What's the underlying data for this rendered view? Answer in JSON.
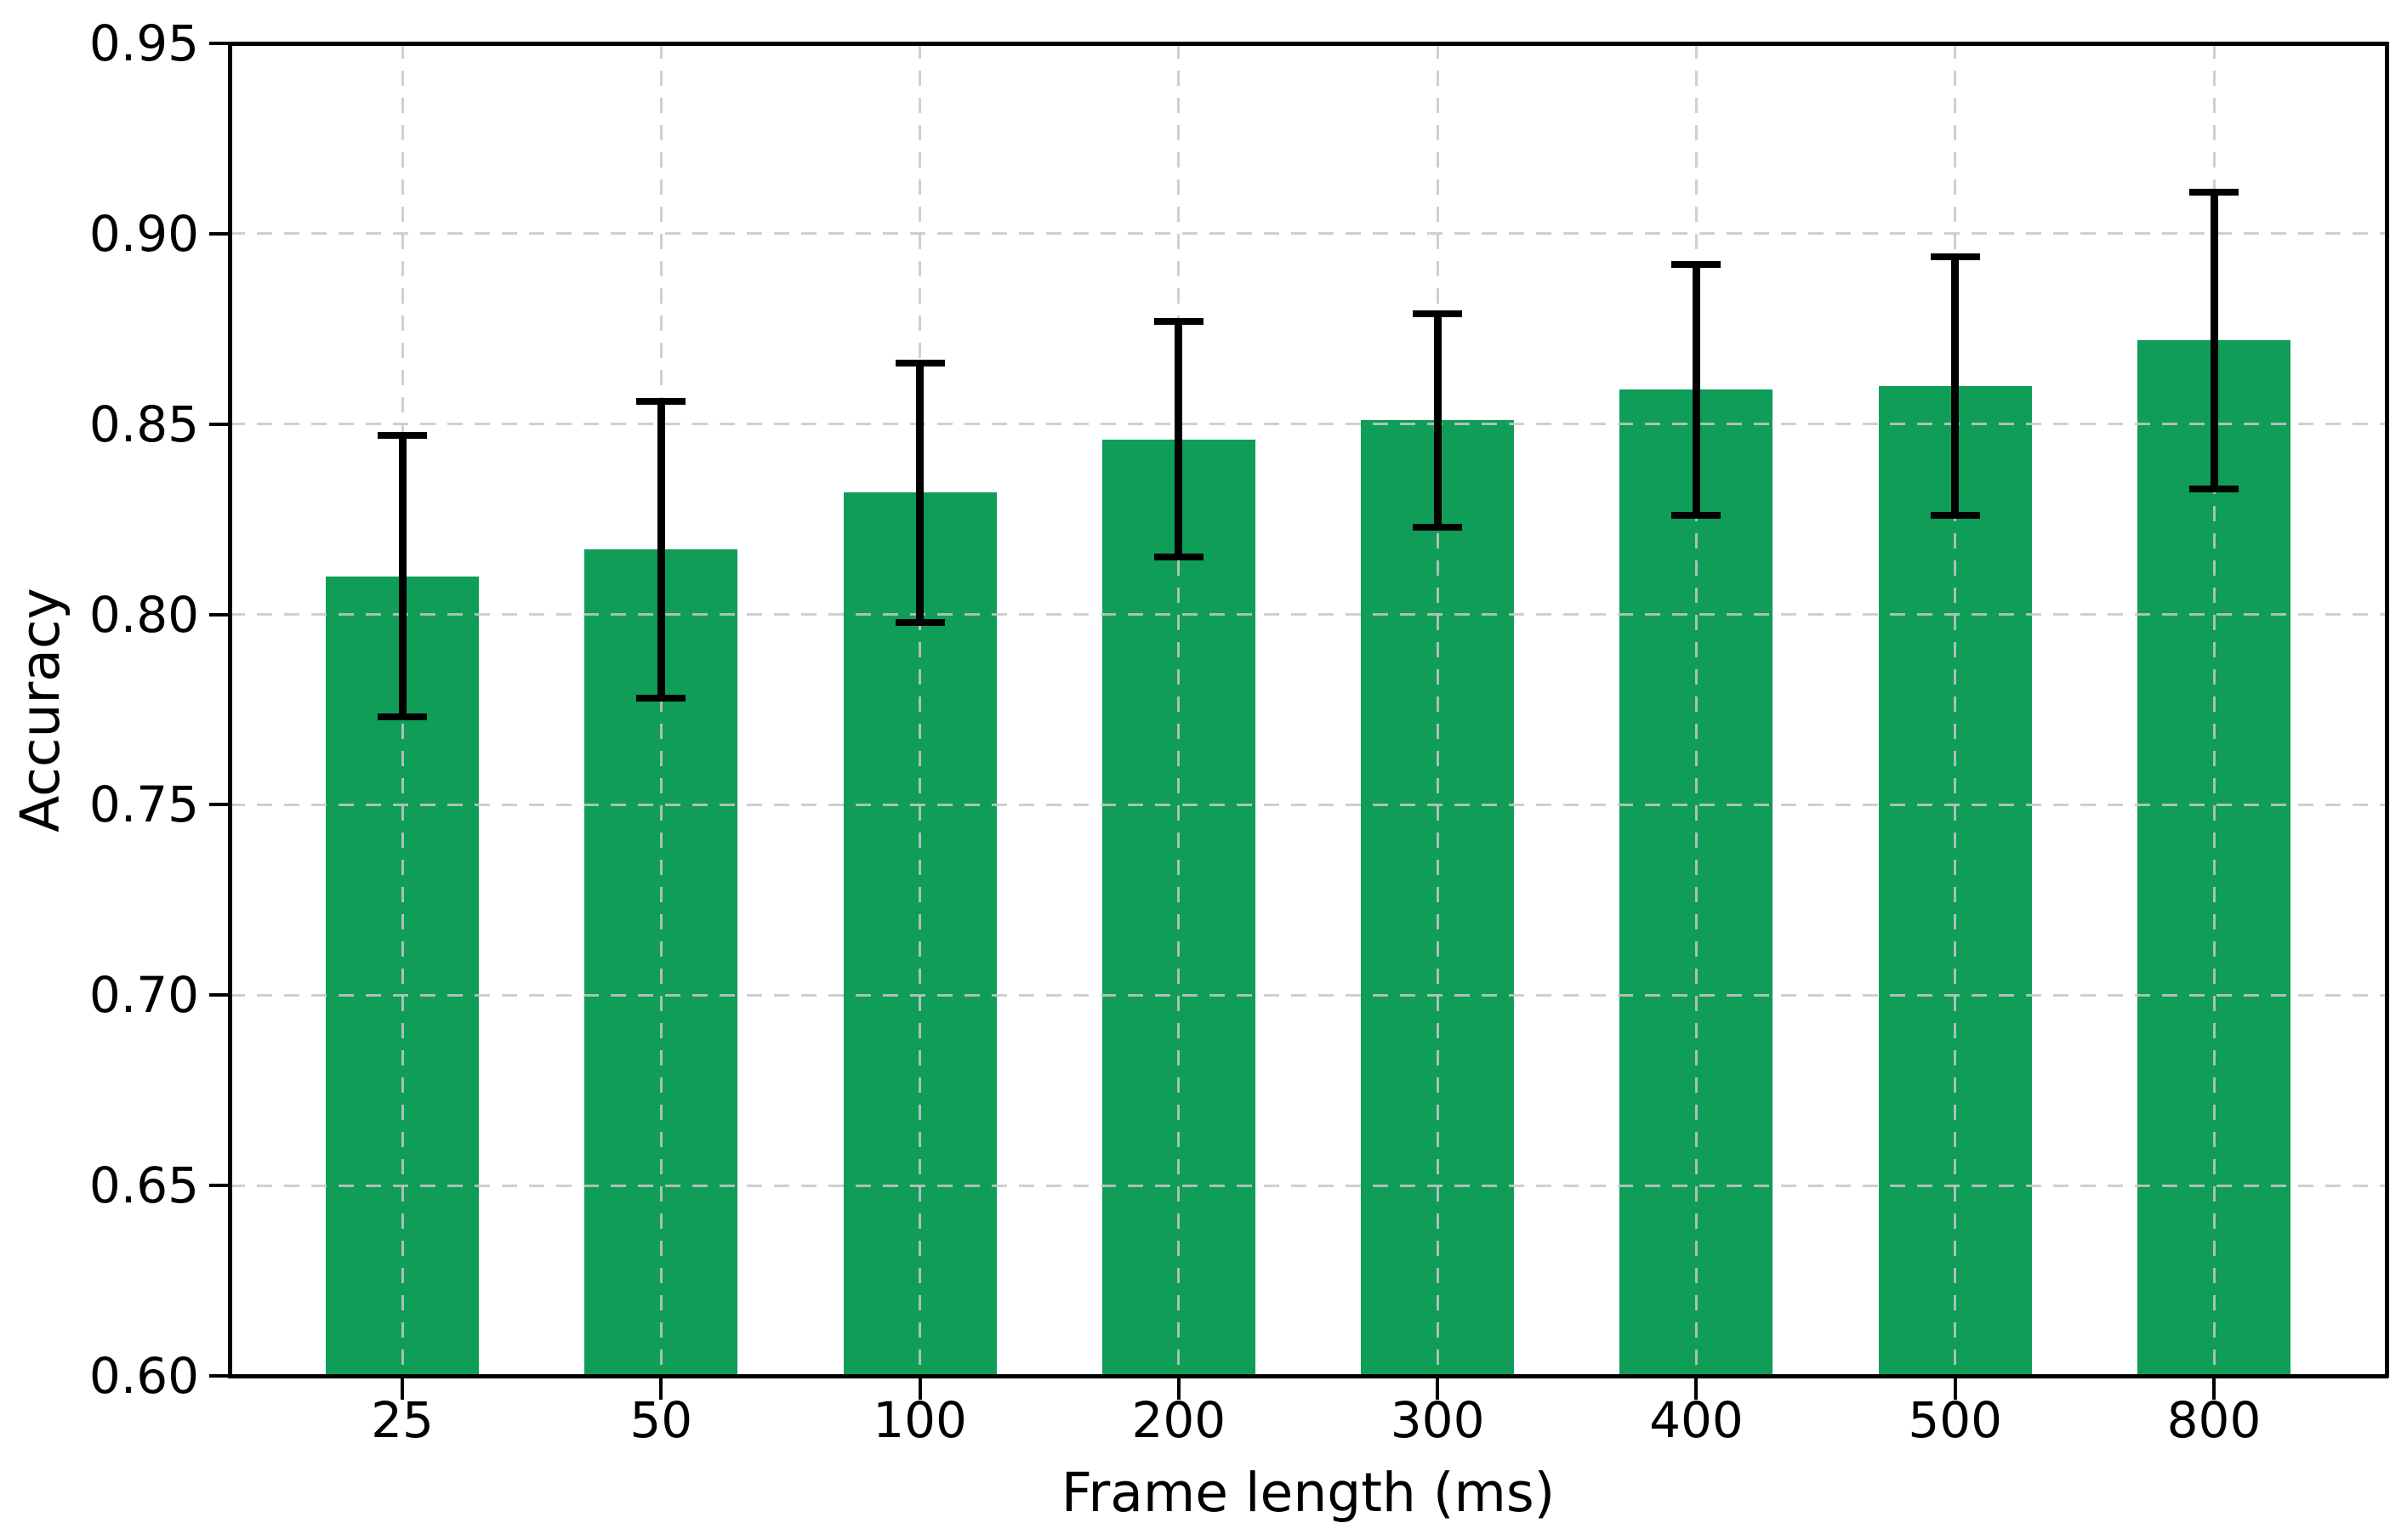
{
  "chart_data": {
    "type": "bar",
    "title": "",
    "xlabel": "Frame length (ms)",
    "ylabel": "Accuracy",
    "categories": [
      "25",
      "50",
      "100",
      "200",
      "300",
      "400",
      "500",
      "800"
    ],
    "values": [
      0.81,
      0.817,
      0.832,
      0.846,
      0.851,
      0.859,
      0.86,
      0.872
    ],
    "yerr": [
      0.037,
      0.039,
      0.034,
      0.031,
      0.028,
      0.033,
      0.034,
      0.039
    ],
    "error_bar_style": "symmetric, black, with caps",
    "ylim": [
      0.6,
      0.95
    ],
    "yticks": [
      0.6,
      0.65,
      0.7,
      0.75,
      0.8,
      0.85,
      0.9,
      0.95
    ],
    "ytick_labels": [
      "0.60",
      "0.65",
      "0.70",
      "0.75",
      "0.80",
      "0.85",
      "0.90",
      "0.95"
    ],
    "grid": true,
    "grid_style": "dashed, both axes, drawn over bars",
    "legend": null,
    "colors": {
      "bar": "#0f9d58",
      "error": "#000000",
      "grid": "#c7c7c7",
      "spine": "#000000",
      "text": "#000000",
      "background": "#ffffff"
    }
  }
}
